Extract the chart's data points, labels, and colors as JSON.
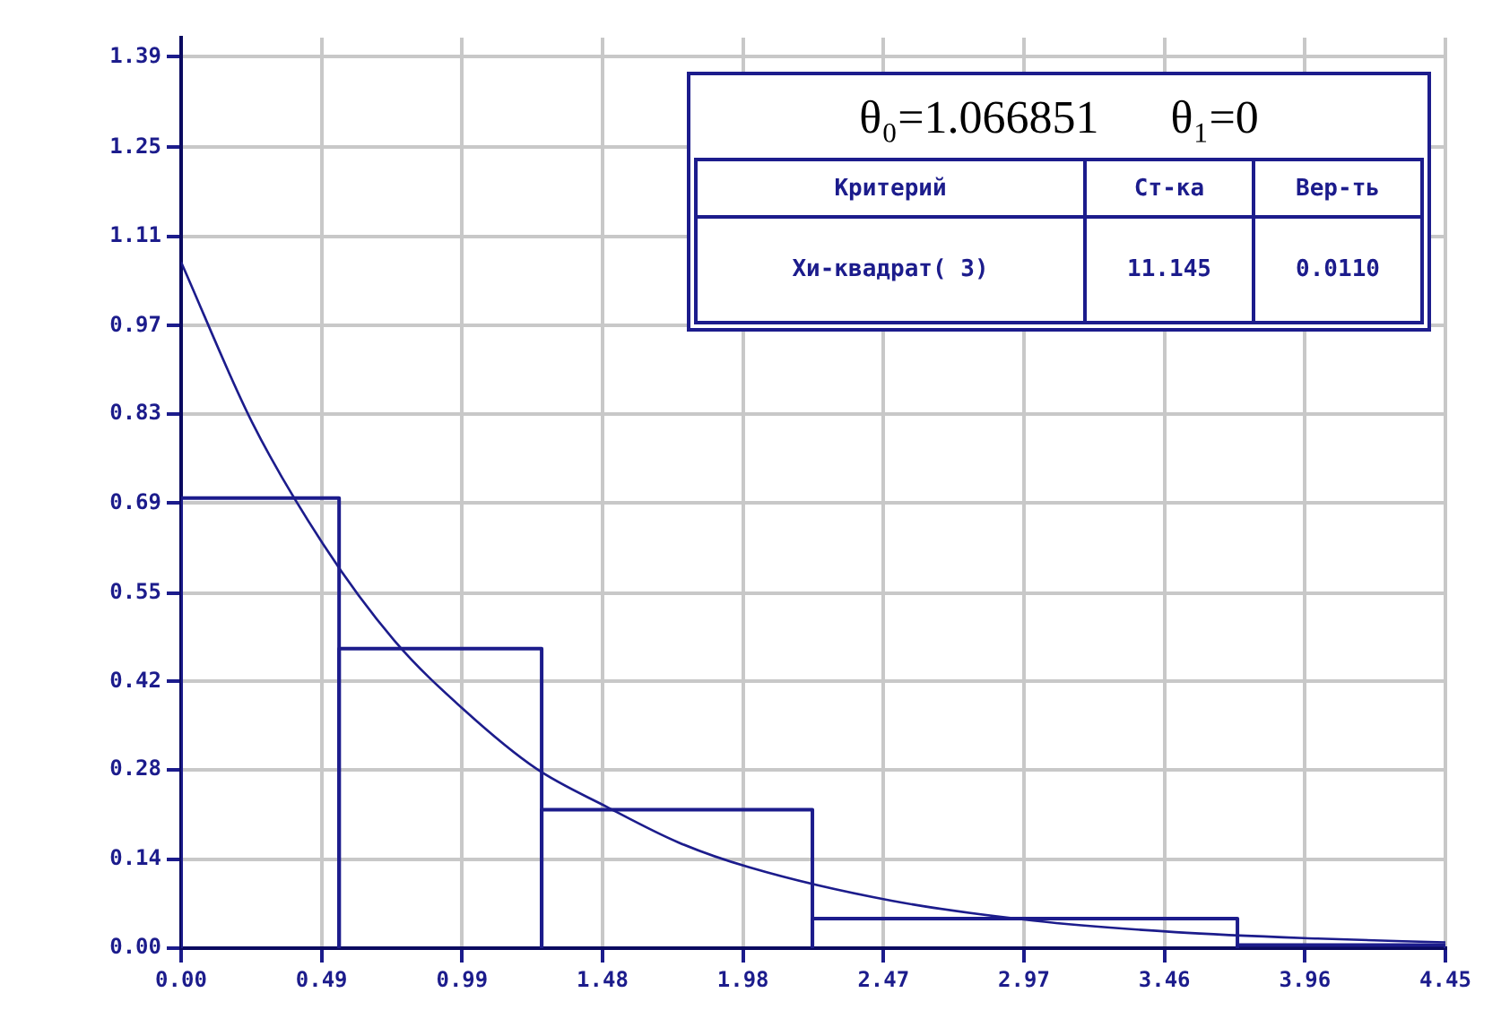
{
  "chart_data": {
    "type": "histogram",
    "bins": [
      0,
      0.556,
      1.269,
      2.222,
      3.718,
      4.45
    ],
    "values": [
      0.702,
      0.467,
      0.216,
      0.046,
      0.005
    ],
    "color": "#1c1c8c",
    "series": [
      {
        "type": "line",
        "color": "#1c1c8c",
        "x": [
          0,
          0.25,
          0.5,
          0.75,
          1,
          1.25,
          1.5,
          1.75,
          2,
          2.5,
          3,
          3.5,
          4,
          4.45
        ],
        "values": [
          1.07,
          0.82,
          0.63,
          0.48,
          0.37,
          0.28,
          0.22,
          0.165,
          0.126,
          0.074,
          0.043,
          0.025,
          0.015,
          0.009
        ]
      }
    ],
    "xlim": [
      0,
      4.45
    ],
    "xticks": [
      {
        "value": 0,
        "label": "0.00"
      },
      {
        "value": 0.4944,
        "label": "0.49"
      },
      {
        "value": 0.9889,
        "label": "0.99"
      },
      {
        "value": 1.4833,
        "label": "1.48"
      },
      {
        "value": 1.9778,
        "label": "1.98"
      },
      {
        "value": 2.4722,
        "label": "2.47"
      },
      {
        "value": 2.9667,
        "label": "2.97"
      },
      {
        "value": 3.4611,
        "label": "3.46"
      },
      {
        "value": 3.9556,
        "label": "3.96"
      },
      4.45
    ],
    "ylim": [
      0,
      1.42
    ],
    "yticks": [
      {
        "value": 0,
        "label": "0.00"
      },
      {
        "value": 0.139,
        "label": "0.14"
      },
      {
        "value": 0.278,
        "label": "0.28"
      },
      {
        "value": 0.416,
        "label": "0.42"
      },
      {
        "value": 0.554,
        "label": "0.55"
      },
      {
        "value": 0.694,
        "label": "0.69"
      },
      {
        "value": 0.833,
        "label": "0.83"
      },
      {
        "value": 0.971,
        "label": "0.97"
      },
      {
        "value": 1.11,
        "label": "1.11"
      },
      {
        "value": 1.249,
        "label": "1.25"
      },
      {
        "value": 1.39,
        "label": "1.39"
      }
    ],
    "grid": true,
    "annotations": [
      "θ₀=1.066851",
      "θ₁=0",
      "Критерий",
      "Ст-ка",
      "Вер-ть",
      "Хи-квадрат( 3)",
      "11.145",
      "0.0110"
    ]
  }
}
